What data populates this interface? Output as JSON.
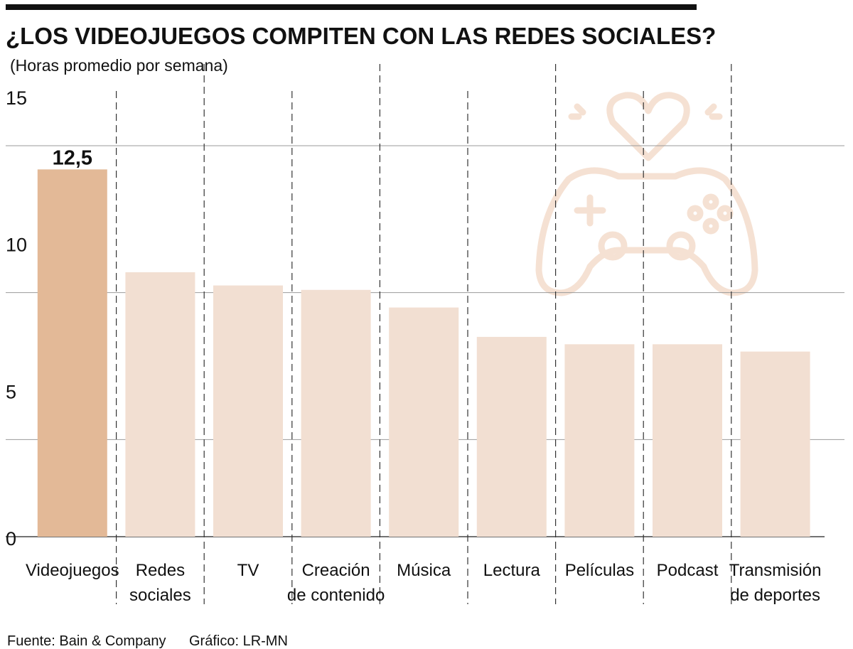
{
  "colors": {
    "accent": "#e3b997",
    "bar": "#f2dfd2",
    "text": "#111111",
    "grid": "#999999",
    "icon": "#f5e1d3"
  },
  "icon": "gamepad-heart-icon",
  "chart_data": {
    "type": "bar",
    "title": "¿LOS VIDEOJUEGOS COMPITEN CON LAS REDES SOCIALES?",
    "subtitle": "(Horas promedio por semana)",
    "categories": [
      [
        "Videojuegos"
      ],
      [
        "Redes",
        "sociales"
      ],
      [
        "TV"
      ],
      [
        "Creación",
        "de contenido"
      ],
      [
        "Música"
      ],
      [
        "Lectura"
      ],
      [
        "Películas"
      ],
      [
        "Podcast"
      ],
      [
        "Transmisión",
        "de deportes"
      ]
    ],
    "values": [
      12.5,
      9.0,
      8.55,
      8.4,
      7.8,
      6.8,
      6.55,
      6.55,
      6.3
    ],
    "data_labels": [
      "12,5",
      "",
      "",
      "",
      "",
      "",
      "",
      "",
      ""
    ],
    "highlight_index": 0,
    "yticks": [
      0,
      5,
      10,
      15
    ],
    "ylim": [
      0,
      15
    ],
    "grid": true,
    "source": "Fuente: Bain & Company",
    "credit": "Gráfico: LR-MN"
  }
}
